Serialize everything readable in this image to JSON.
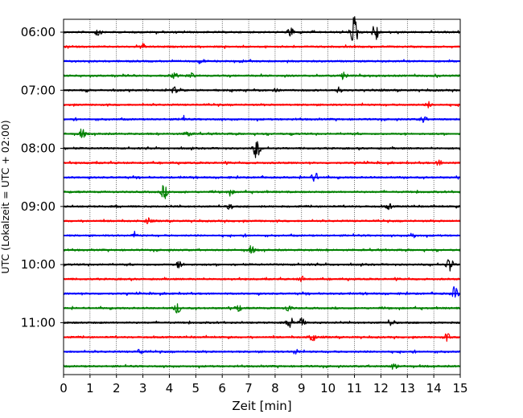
{
  "chart_data": {
    "type": "line",
    "xlabel": "Zeit  [min]",
    "ylabel": "UTC (Lokalzeit = UTC + 02:00)",
    "x_ticks": [
      "0",
      "1",
      "2",
      "3",
      "4",
      "5",
      "6",
      "7",
      "8",
      "9",
      "10",
      "11",
      "12",
      "13",
      "14",
      "15"
    ],
    "y_ticks": [
      "06:00",
      "07:00",
      "08:00",
      "09:00",
      "10:00",
      "11:00"
    ],
    "xlim": [
      0,
      15
    ],
    "x_grid": true,
    "row_minutes": 15,
    "start_utc": "06:00",
    "series_colors": [
      "#000000",
      "#ff0000",
      "#0000ff",
      "#008000"
    ],
    "rows": [
      {
        "utc": "06:00",
        "color": "#000000",
        "events": [
          {
            "t": 8.6,
            "amp": 0.6
          },
          {
            "t": 11.0,
            "amp": 2.0
          },
          {
            "t": 11.8,
            "amp": 1.2
          },
          {
            "t": 1.3,
            "amp": 0.4
          }
        ]
      },
      {
        "utc": "06:15",
        "color": "#ff0000",
        "events": [
          {
            "t": 3.0,
            "amp": 0.3
          }
        ]
      },
      {
        "utc": "06:30",
        "color": "#0000ff",
        "events": [
          {
            "t": 5.2,
            "amp": 0.3
          }
        ]
      },
      {
        "utc": "06:45",
        "color": "#008000",
        "events": [
          {
            "t": 4.8,
            "amp": 0.4
          },
          {
            "t": 10.6,
            "amp": 0.5
          },
          {
            "t": 4.2,
            "amp": 0.3
          }
        ]
      },
      {
        "utc": "07:00",
        "color": "#000000",
        "events": [
          {
            "t": 4.2,
            "amp": 0.4
          },
          {
            "t": 8.0,
            "amp": 0.3
          },
          {
            "t": 10.4,
            "amp": 0.3
          }
        ]
      },
      {
        "utc": "07:15",
        "color": "#ff0000",
        "events": [
          {
            "t": 13.8,
            "amp": 0.3
          }
        ]
      },
      {
        "utc": "07:30",
        "color": "#0000ff",
        "events": [
          {
            "t": 4.5,
            "amp": 0.3
          },
          {
            "t": 13.6,
            "amp": 0.3
          }
        ]
      },
      {
        "utc": "07:45",
        "color": "#008000",
        "events": [
          {
            "t": 0.7,
            "amp": 0.5
          },
          {
            "t": 4.7,
            "amp": 0.3
          }
        ]
      },
      {
        "utc": "08:00",
        "color": "#000000",
        "events": [
          {
            "t": 7.3,
            "amp": 1.2
          }
        ]
      },
      {
        "utc": "08:15",
        "color": "#ff0000",
        "events": [
          {
            "t": 14.2,
            "amp": 0.3
          }
        ]
      },
      {
        "utc": "08:30",
        "color": "#0000ff",
        "events": [
          {
            "t": 9.5,
            "amp": 0.6
          }
        ]
      },
      {
        "utc": "08:45",
        "color": "#008000",
        "events": [
          {
            "t": 3.8,
            "amp": 0.8
          },
          {
            "t": 6.3,
            "amp": 0.3
          }
        ]
      },
      {
        "utc": "09:00",
        "color": "#000000",
        "events": [
          {
            "t": 6.3,
            "amp": 0.3
          },
          {
            "t": 12.3,
            "amp": 0.3
          }
        ]
      },
      {
        "utc": "09:15",
        "color": "#ff0000",
        "events": [
          {
            "t": 3.2,
            "amp": 0.3
          }
        ]
      },
      {
        "utc": "09:30",
        "color": "#0000ff",
        "events": [
          {
            "t": 2.7,
            "amp": 0.3
          },
          {
            "t": 13.2,
            "amp": 0.3
          }
        ]
      },
      {
        "utc": "09:45",
        "color": "#008000",
        "events": [
          {
            "t": 7.1,
            "amp": 0.4
          }
        ]
      },
      {
        "utc": "10:00",
        "color": "#000000",
        "events": [
          {
            "t": 4.4,
            "amp": 0.5
          },
          {
            "t": 14.6,
            "amp": 0.9
          }
        ]
      },
      {
        "utc": "10:15",
        "color": "#ff0000",
        "events": [
          {
            "t": 9.0,
            "amp": 0.3
          }
        ]
      },
      {
        "utc": "10:30",
        "color": "#0000ff",
        "events": [
          {
            "t": 14.8,
            "amp": 0.8
          }
        ]
      },
      {
        "utc": "10:45",
        "color": "#008000",
        "events": [
          {
            "t": 4.3,
            "amp": 0.6
          },
          {
            "t": 6.6,
            "amp": 0.4
          },
          {
            "t": 8.5,
            "amp": 0.4
          }
        ]
      },
      {
        "utc": "11:00",
        "color": "#000000",
        "events": [
          {
            "t": 8.6,
            "amp": 0.7
          },
          {
            "t": 9.0,
            "amp": 0.5
          },
          {
            "t": 12.4,
            "amp": 0.4
          }
        ]
      },
      {
        "utc": "11:15",
        "color": "#ff0000",
        "events": [
          {
            "t": 9.4,
            "amp": 0.6
          },
          {
            "t": 14.5,
            "amp": 0.4
          }
        ]
      },
      {
        "utc": "11:30",
        "color": "#0000ff",
        "events": [
          {
            "t": 2.9,
            "amp": 0.3
          },
          {
            "t": 8.8,
            "amp": 0.3
          }
        ]
      },
      {
        "utc": "11:45",
        "color": "#008000",
        "events": [
          {
            "t": 12.5,
            "amp": 0.4
          }
        ]
      }
    ]
  }
}
